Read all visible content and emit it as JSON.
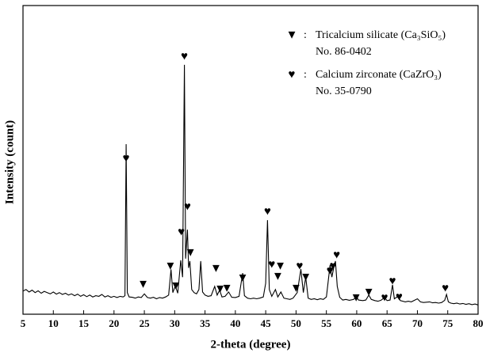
{
  "chart_data": {
    "type": "line",
    "x_label": "2-theta (degree)",
    "y_label": "Intensity (count)",
    "color": "#000000",
    "xlim": [
      5,
      80
    ],
    "ylim": [
      0,
      1000
    ],
    "xticks": [
      5,
      10,
      15,
      20,
      25,
      30,
      35,
      40,
      45,
      50,
      55,
      60,
      65,
      70,
      75,
      80
    ],
    "separator": ":",
    "x": [
      5,
      5.5,
      6,
      6.5,
      7,
      7.5,
      8,
      8.5,
      9,
      9.5,
      10,
      10.5,
      11,
      11.5,
      12,
      12.5,
      13,
      13.5,
      14,
      14.5,
      15,
      15.5,
      16,
      16.5,
      17,
      17.5,
      18,
      18.5,
      19,
      19.5,
      20,
      20.5,
      21,
      21.5,
      21.8,
      22,
      22.2,
      22.5,
      23,
      23.5,
      24,
      24.5,
      25,
      25.5,
      26,
      26.5,
      27,
      27.5,
      28,
      28.5,
      29,
      29.4,
      29.7,
      30.1,
      30.5,
      31,
      31.3,
      31.6,
      31.8,
      32.1,
      32.3,
      32.5,
      32.8,
      33.2,
      33.6,
      34,
      34.3,
      34.6,
      35,
      35.5,
      36,
      36.6,
      37,
      37.4,
      37.8,
      38.3,
      38.9,
      39.4,
      40,
      40.6,
      41.2,
      41.5,
      42,
      42.5,
      43,
      43.5,
      44,
      44.6,
      45,
      45.3,
      45.6,
      46,
      46.6,
      47,
      47.5,
      48,
      48.5,
      49,
      49.5,
      50.2,
      50.8,
      51.2,
      51.6,
      52,
      52.5,
      53,
      53.5,
      54,
      54.5,
      55,
      55.6,
      55.9,
      56.2,
      56.5,
      56.8,
      57.2,
      57.7,
      58.2,
      58.8,
      59.5,
      59.9,
      60.3,
      61,
      61.5,
      62,
      62.4,
      63,
      63.5,
      64,
      64.6,
      65,
      65.5,
      65.9,
      66.2,
      66.8,
      67.2,
      68,
      68.5,
      69,
      70,
      70.5,
      71,
      72,
      72.5,
      73,
      73.5,
      74,
      74.5,
      74.8,
      75.1,
      75.5,
      76,
      76.5,
      77,
      77.5,
      78,
      78.5,
      79,
      79.5,
      80
    ],
    "values": [
      75,
      80,
      72,
      78,
      70,
      76,
      68,
      74,
      70,
      66,
      72,
      65,
      70,
      64,
      68,
      62,
      66,
      60,
      65,
      58,
      63,
      57,
      62,
      56,
      60,
      58,
      64,
      56,
      60,
      55,
      58,
      54,
      58,
      56,
      60,
      551,
      70,
      56,
      55,
      52,
      56,
      54,
      66,
      54,
      52,
      55,
      50,
      54,
      52,
      56,
      62,
      145,
      70,
      92,
      68,
      175,
      120,
      808,
      180,
      274,
      150,
      172,
      80,
      70,
      66,
      80,
      172,
      72,
      62,
      58,
      60,
      90,
      62,
      78,
      56,
      58,
      72,
      55,
      54,
      58,
      133,
      60,
      52,
      50,
      52,
      50,
      52,
      56,
      100,
      305,
      80,
      58,
      80,
      56,
      72,
      52,
      50,
      48,
      52,
      70,
      146,
      70,
      120,
      52,
      48,
      50,
      47,
      50,
      48,
      56,
      159,
      120,
      150,
      172,
      90,
      55,
      46,
      48,
      45,
      48,
      58,
      46,
      44,
      46,
      62,
      48,
      44,
      42,
      45,
      54,
      44,
      46,
      95,
      50,
      58,
      44,
      40,
      42,
      40,
      50,
      40,
      38,
      40,
      37,
      38,
      36,
      38,
      45,
      64,
      40,
      36,
      34,
      36,
      33,
      35,
      32,
      34,
      31,
      33,
      30
    ],
    "marker_series": [
      {
        "symbol": "▼",
        "label": "Tricalcium silicate (Ca₃SiO₅)",
        "card": "No. 86-0402",
        "x": [
          24.8,
          29.3,
          30.2,
          32.6,
          36.8,
          37.5,
          38.6,
          41.2,
          47.0,
          47.4,
          50.0,
          51.6,
          59.9,
          62.0
        ],
        "y": [
          95,
          154,
          90,
          197,
          146,
          79,
          82,
          115,
          120,
          154,
          82,
          118,
          51,
          69
        ]
      },
      {
        "symbol": "♥",
        "label": "Calcium zirconate (CaZrO₃)",
        "card": "No. 35-0790",
        "x": [
          22.0,
          31.1,
          31.6,
          32.1,
          45.3,
          46.0,
          50.6,
          55.6,
          56.1,
          56.7,
          64.6,
          65.9,
          67.0,
          74.6
        ],
        "y": [
          503,
          264,
          833,
          346,
          331,
          159,
          154,
          138,
          154,
          190,
          51,
          105,
          54,
          82
        ]
      }
    ]
  }
}
